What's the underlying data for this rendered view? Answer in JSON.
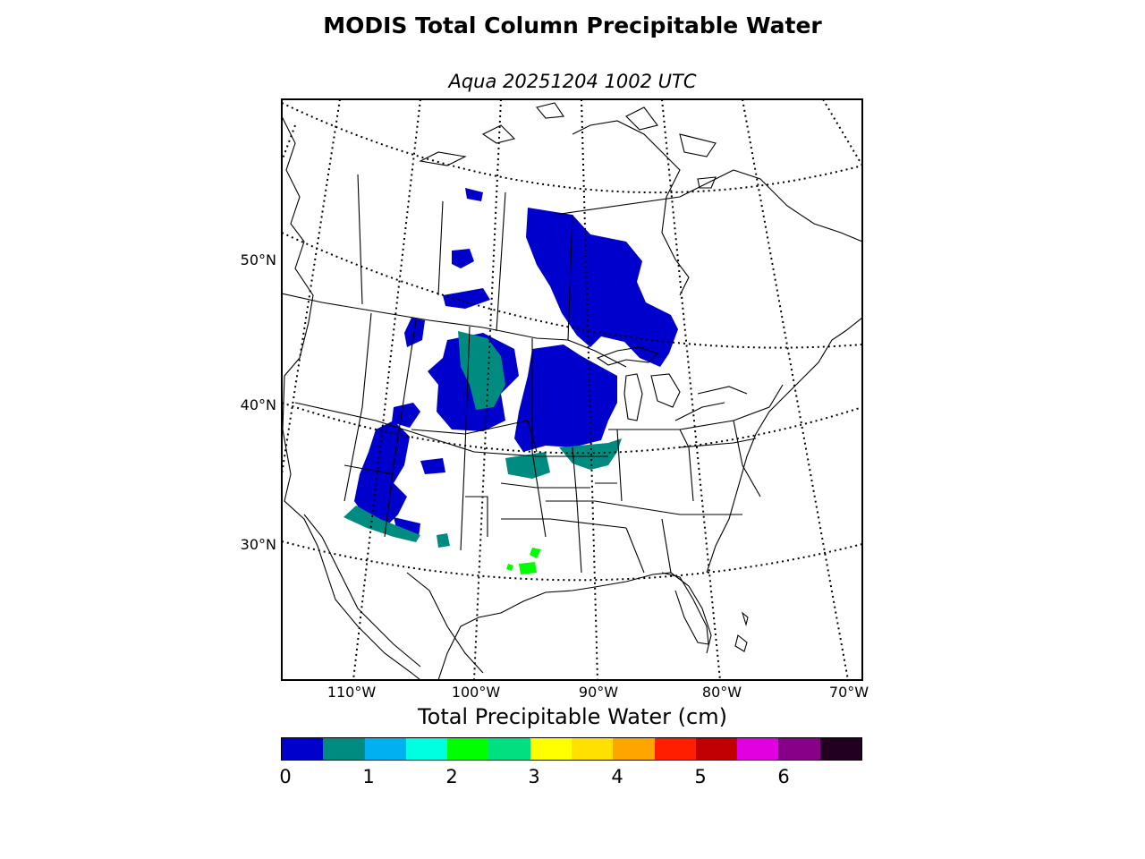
{
  "title": "MODIS Total Column Precipitable Water",
  "subtitle": "Aqua 20251204 1002 UTC",
  "lat_labels": [
    "50°N",
    "40°N",
    "30°N"
  ],
  "lon_labels": [
    "110°W",
    "100°W",
    "90°W",
    "80°W",
    "70°W"
  ],
  "colorbar": {
    "label": "Total Precipitable Water (cm)",
    "colors": [
      "#0000cd",
      "#008b80",
      "#00b0f0",
      "#00ffe0",
      "#00ff00",
      "#00e080",
      "#ffff00",
      "#ffe000",
      "#ffa500",
      "#ff1e00",
      "#c00000",
      "#e000e0",
      "#880088",
      "#220022"
    ],
    "tick_labels": [
      "0",
      "1",
      "2",
      "3",
      "4",
      "5",
      "6"
    ]
  },
  "colors": {
    "tpw_low": "#0000cd",
    "tpw_mid": "#008b80",
    "tpw_green": "#00ff00",
    "border": "#000000"
  }
}
